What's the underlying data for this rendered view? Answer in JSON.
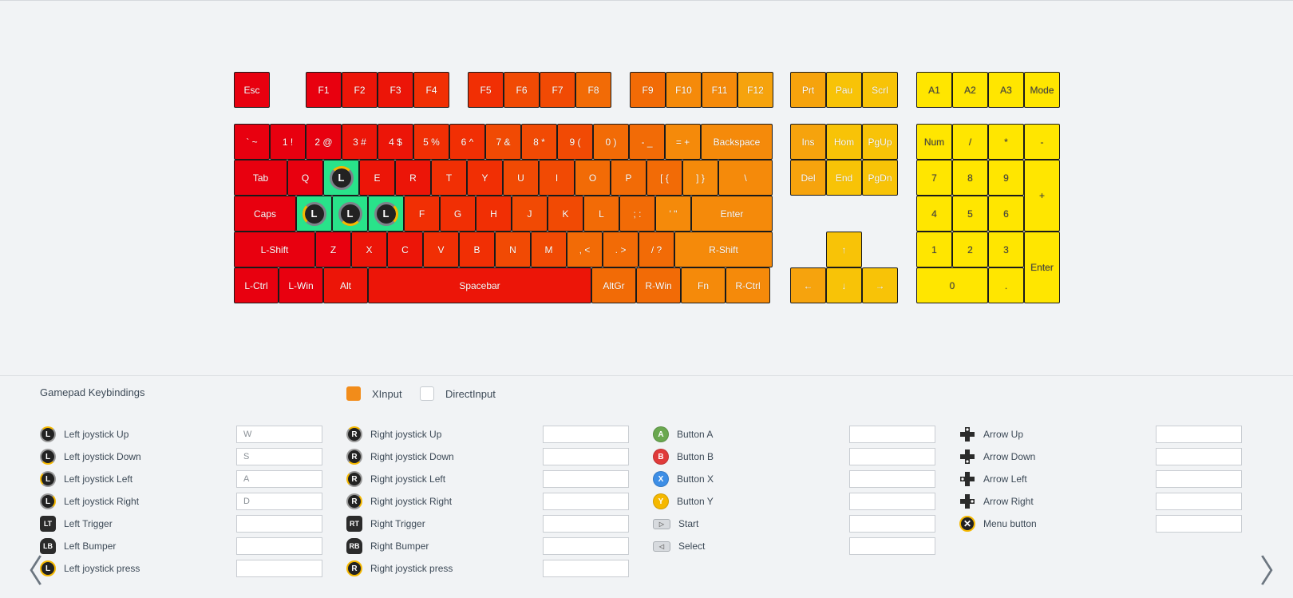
{
  "colors": {
    "keyscale": [
      "#e8000f",
      "#ec1508",
      "#f12f04",
      "#f14a04",
      "#f26b06",
      "#f58a0a",
      "#f6a30d",
      "#f8c307"
    ],
    "numpad": "#ffe600",
    "joystick_key": "#29e38a",
    "accent": "#f28c1a"
  },
  "keyboard": {
    "rows": [
      [
        "Esc",
        "F1",
        "F2",
        "F3",
        "F4",
        "F5",
        "F6",
        "F7",
        "F8",
        "F9",
        "F10",
        "F11",
        "F12",
        "Prt",
        "Pau",
        "Scrl",
        "A1",
        "A2",
        "A3",
        "Mode"
      ],
      [
        "` ~",
        "1 !",
        "2 @",
        "3 #",
        "4 $",
        "5 %",
        "6 ^",
        "7 &",
        "8 *",
        "9 (",
        "0 )",
        "- _",
        "= +",
        "Backspace",
        "Ins",
        "Hom",
        "PgUp",
        "Num",
        "/",
        "*",
        "-"
      ],
      [
        "Tab",
        "Q",
        "W",
        "E",
        "R",
        "T",
        "Y",
        "U",
        "I",
        "O",
        "P",
        "[ {",
        "] }",
        "\\",
        "Del",
        "End",
        "PgDn",
        "7",
        "8",
        "9",
        "+"
      ],
      [
        "Caps",
        "A",
        "S",
        "D",
        "F",
        "G",
        "H",
        "J",
        "K",
        "L",
        "; :",
        "' \"",
        "Enter",
        "4",
        "5",
        "6"
      ],
      [
        "L-Shift",
        "Z",
        "X",
        "C",
        "V",
        "B",
        "N",
        "M",
        ", <",
        ". >",
        "/ ?",
        "R-Shift",
        "↑",
        "1",
        "2",
        "3",
        "Enter"
      ],
      [
        "L-Ctrl",
        "L-Win",
        "Alt",
        "Spacebar",
        "AltGr",
        "R-Win",
        "Fn",
        "R-Ctrl",
        "←",
        "↓",
        "→",
        "0",
        "."
      ]
    ],
    "joystick_keys": [
      {
        "key": "W",
        "badge": "L",
        "direction": "up"
      },
      {
        "key": "A",
        "badge": "L",
        "direction": "left"
      },
      {
        "key": "S",
        "badge": "L",
        "direction": "down"
      },
      {
        "key": "D",
        "badge": "L",
        "direction": "right"
      }
    ]
  },
  "panel": {
    "title": "Gamepad Keybindings",
    "modes": [
      {
        "label": "XInput",
        "checked": true
      },
      {
        "label": "DirectInput",
        "checked": false
      }
    ],
    "columns": [
      [
        {
          "label": "Left joystick Up",
          "icon": "left-stick-up-icon",
          "glyph": "L",
          "value": "W"
        },
        {
          "label": "Left joystick Down",
          "icon": "left-stick-down-icon",
          "glyph": "L",
          "value": "S"
        },
        {
          "label": "Left joystick Left",
          "icon": "left-stick-left-icon",
          "glyph": "L",
          "value": "A"
        },
        {
          "label": "Left joystick Right",
          "icon": "left-stick-right-icon",
          "glyph": "L",
          "value": "D"
        },
        {
          "label": "Left Trigger",
          "icon": "left-trigger-icon",
          "glyph": "LT",
          "value": ""
        },
        {
          "label": "Left Bumper",
          "icon": "left-bumper-icon",
          "glyph": "LB",
          "value": ""
        },
        {
          "label": "Left joystick press",
          "icon": "left-stick-press-icon",
          "glyph": "L",
          "value": ""
        }
      ],
      [
        {
          "label": "Right joystick Up",
          "icon": "right-stick-up-icon",
          "glyph": "R",
          "value": ""
        },
        {
          "label": "Right joystick Down",
          "icon": "right-stick-down-icon",
          "glyph": "R",
          "value": ""
        },
        {
          "label": "Right joystick Left",
          "icon": "right-stick-left-icon",
          "glyph": "R",
          "value": ""
        },
        {
          "label": "Right joystick Right",
          "icon": "right-stick-right-icon",
          "glyph": "R",
          "value": ""
        },
        {
          "label": "Right Trigger",
          "icon": "right-trigger-icon",
          "glyph": "RT",
          "value": ""
        },
        {
          "label": "Right Bumper",
          "icon": "right-bumper-icon",
          "glyph": "RB",
          "value": ""
        },
        {
          "label": "Right joystick press",
          "icon": "right-stick-press-icon",
          "glyph": "R",
          "value": ""
        }
      ],
      [
        {
          "label": "Button A",
          "icon": "button-a-icon",
          "glyph": "A",
          "color": "#6aa84f",
          "value": ""
        },
        {
          "label": "Button B",
          "icon": "button-b-icon",
          "glyph": "B",
          "color": "#e03a3a",
          "value": ""
        },
        {
          "label": "Button X",
          "icon": "button-x-icon",
          "glyph": "X",
          "color": "#3d8ee6",
          "value": ""
        },
        {
          "label": "Button Y",
          "icon": "button-y-icon",
          "glyph": "Y",
          "color": "#f5b800",
          "value": ""
        },
        {
          "label": "Start",
          "icon": "start-icon",
          "glyph": "▷",
          "value": ""
        },
        {
          "label": "Select",
          "icon": "select-icon",
          "glyph": "◁",
          "value": ""
        }
      ],
      [
        {
          "label": "Arrow Up",
          "icon": "dpad-up-icon",
          "value": ""
        },
        {
          "label": "Arrow Down",
          "icon": "dpad-down-icon",
          "value": ""
        },
        {
          "label": "Arrow Left",
          "icon": "dpad-left-icon",
          "value": ""
        },
        {
          "label": "Arrow Right",
          "icon": "dpad-right-icon",
          "value": ""
        },
        {
          "label": "Menu button",
          "icon": "menu-button-icon",
          "glyph": "✕",
          "value": ""
        }
      ]
    ],
    "nav": {
      "prev": "〈",
      "next": "〉"
    }
  }
}
